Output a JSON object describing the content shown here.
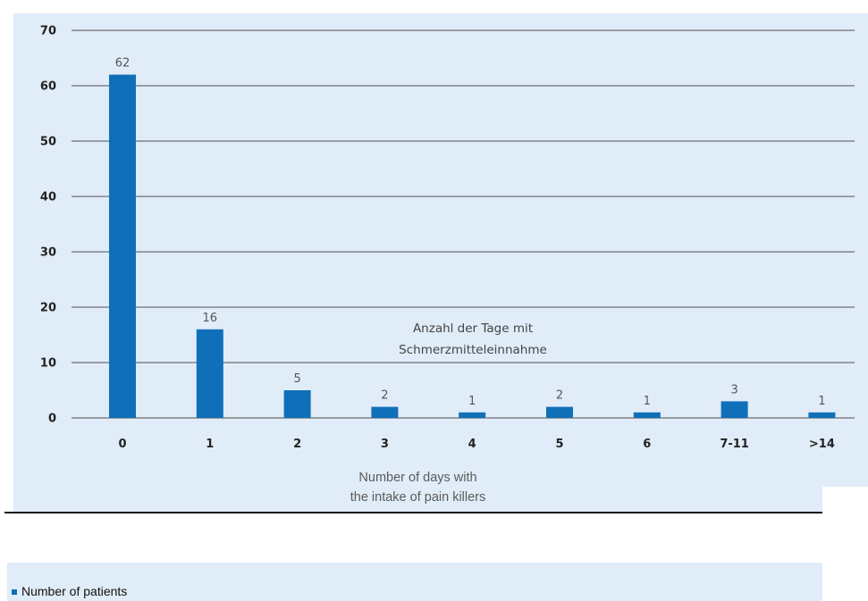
{
  "chart_data": {
    "type": "bar",
    "categories": [
      "0",
      "1",
      "2",
      "3",
      "4",
      "5",
      "6",
      "7-11",
      ">14"
    ],
    "values": [
      62,
      16,
      5,
      2,
      1,
      2,
      1,
      3,
      1
    ],
    "data_labels": [
      "62",
      "16",
      "5",
      "2",
      "1",
      "2",
      "1",
      "3",
      "1"
    ],
    "ylim": [
      0,
      70
    ],
    "yticks": [
      "0",
      "10",
      "20",
      "30",
      "40",
      "50",
      "60",
      "70"
    ],
    "grid": true,
    "annotation": [
      "Anzahl der Tage mit",
      "Schmerzmitteleinnahme"
    ],
    "bar_color": "#0f6fb9",
    "background_color": "#e0ecf8"
  },
  "caption": {
    "line1": "Number of days with",
    "line2": "the intake of pain killers"
  },
  "legend": {
    "label": "Number of patients",
    "color": "#0f6fb9"
  }
}
